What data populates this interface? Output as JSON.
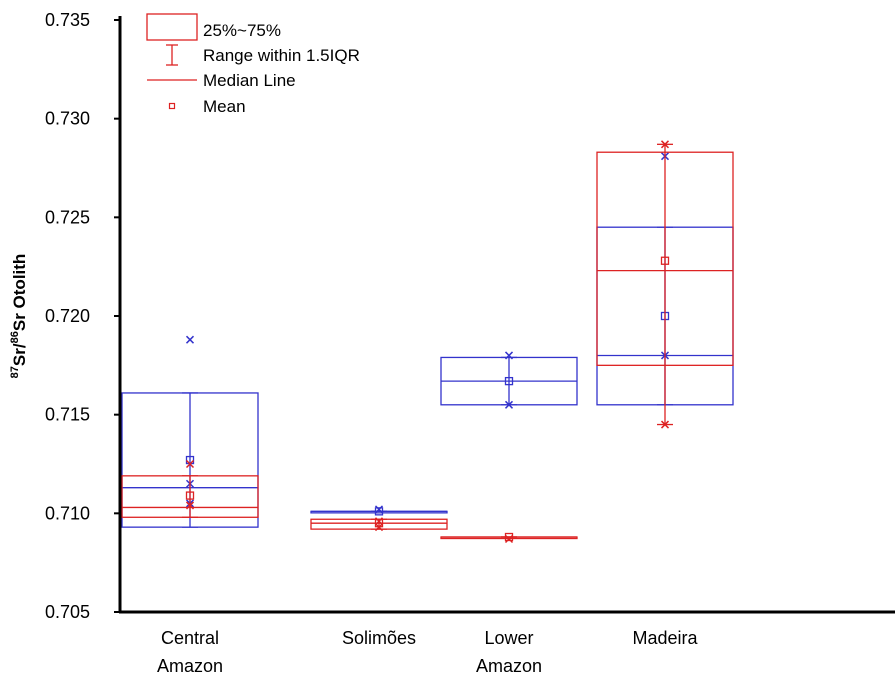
{
  "chart_data": {
    "type": "box",
    "ylabel": {
      "sup1": "87",
      "base1": "Sr/",
      "sup2": "86",
      "base2": "Sr  Otolith"
    },
    "ylim": [
      0.705,
      0.735
    ],
    "yticks": [
      "0.705",
      "0.710",
      "0.715",
      "0.720",
      "0.725",
      "0.730",
      "0.735"
    ],
    "categories": [
      [
        "Central",
        "Amazon"
      ],
      [
        "Solimões"
      ],
      [
        "Lower",
        "Amazon"
      ],
      [
        "Madeira"
      ]
    ],
    "legend": {
      "placement": "top-left",
      "items": [
        {
          "label": "25%~75%",
          "kind": "box"
        },
        {
          "label": "Range within 1.5IQR",
          "kind": "whisker"
        },
        {
          "label": "Median Line",
          "kind": "median"
        },
        {
          "label": "Mean",
          "kind": "mean"
        }
      ]
    },
    "series": [
      {
        "color": "#3333cc",
        "boxes": [
          {
            "category": 0,
            "q1": 0.7093,
            "median": 0.7113,
            "q3": 0.7161,
            "whisker_low": 0.7093,
            "whisker_high": 0.7161,
            "mean": 0.7127,
            "outliers": [
              0.7188,
              0.7115,
              0.7105
            ]
          },
          {
            "category": 1,
            "q1": 0.7101,
            "median": 0.7101,
            "q3": 0.7101,
            "whisker_low": 0.7101,
            "whisker_high": 0.7101,
            "mean": 0.7101,
            "outliers": [
              0.7102
            ]
          },
          {
            "category": 2,
            "q1": 0.7155,
            "median": 0.7167,
            "q3": 0.7179,
            "whisker_low": 0.7155,
            "whisker_high": 0.7179,
            "mean": 0.7167,
            "outliers": [
              0.718,
              0.7155
            ]
          },
          {
            "category": 3,
            "q1": 0.7155,
            "median": 0.718,
            "q3": 0.7245,
            "whisker_low": 0.7155,
            "whisker_high": 0.7245,
            "mean": 0.72,
            "outliers": [
              0.7281,
              0.718
            ]
          }
        ]
      },
      {
        "color": "#dd2222",
        "boxes": [
          {
            "category": 0,
            "q1": 0.7098,
            "median": 0.7103,
            "q3": 0.7119,
            "whisker_low": 0.7098,
            "whisker_high": 0.7119,
            "mean": 0.7109,
            "outliers": [
              0.7125,
              0.7104
            ]
          },
          {
            "category": 1,
            "q1": 0.7092,
            "median": 0.7095,
            "q3": 0.7097,
            "whisker_low": 0.7092,
            "whisker_high": 0.7097,
            "mean": 0.7095,
            "outliers": [
              0.7093,
              0.7096
            ]
          },
          {
            "category": 2,
            "q1": 0.7088,
            "median": 0.7088,
            "q3": 0.7088,
            "whisker_low": 0.7088,
            "whisker_high": 0.7088,
            "mean": 0.7088,
            "outliers": [
              0.7087
            ]
          },
          {
            "category": 3,
            "q1": 0.7175,
            "median": 0.7223,
            "q3": 0.7283,
            "whisker_low": 0.7145,
            "whisker_high": 0.7287,
            "mean": 0.7228,
            "outliers": [
              0.7145,
              0.7287
            ]
          }
        ]
      }
    ]
  }
}
